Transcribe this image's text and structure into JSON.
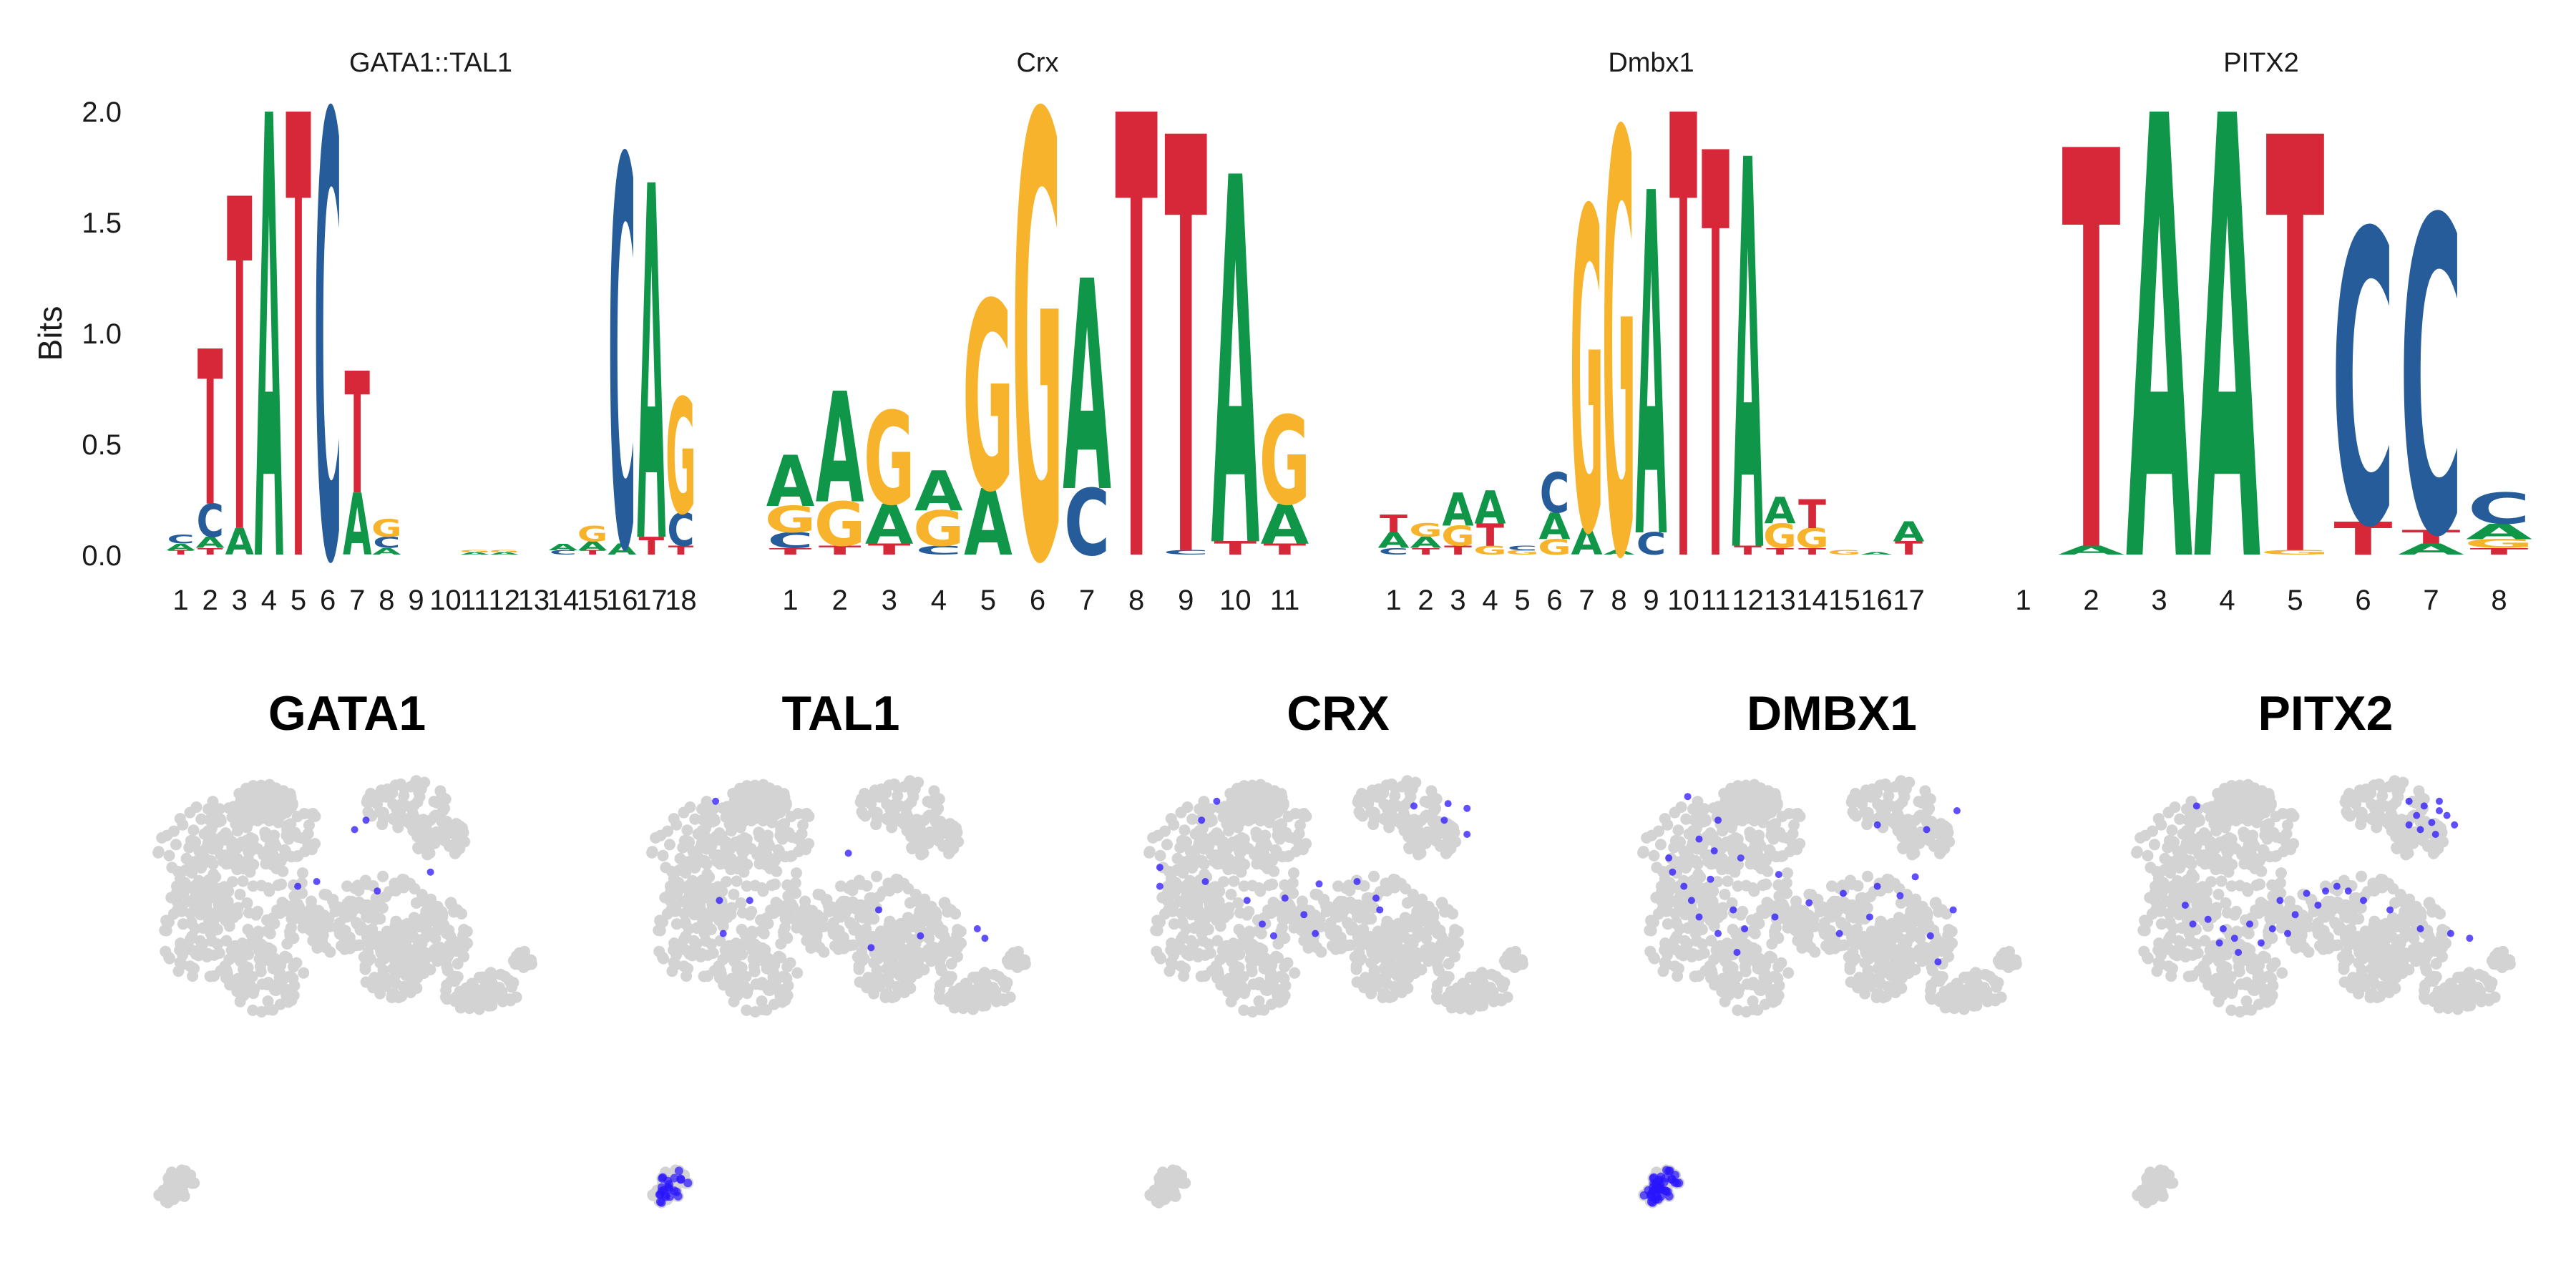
{
  "colors": {
    "A": "#109648",
    "C": "#255C99",
    "G": "#F7B32B",
    "T": "#D62839",
    "umap_bg": "#d3d3d3",
    "umap_hi": "#2a14ff"
  },
  "logo_panel": {
    "ylabel": "Bits",
    "y_ticks": [
      "0.0",
      "0.5",
      "1.0",
      "1.5",
      "2.0"
    ]
  },
  "chart_data": [
    {
      "type": "sequence-logo",
      "title": "GATA1::TAL1",
      "ylabel": "Bits",
      "ylim": [
        0,
        2
      ],
      "positions": [
        {
          "pos": "1",
          "stack": [
            [
              "T",
              0.02
            ],
            [
              "A",
              0.03
            ],
            [
              "C",
              0.04
            ]
          ]
        },
        {
          "pos": "2",
          "stack": [
            [
              "T",
              0.03
            ],
            [
              "A",
              0.05
            ],
            [
              "C",
              0.15
            ],
            [
              "T",
              0.7
            ]
          ]
        },
        {
          "pos": "3",
          "stack": [
            [
              "A",
              0.12
            ],
            [
              "T",
              1.5
            ]
          ]
        },
        {
          "pos": "4",
          "stack": [
            [
              "A",
              2.0
            ]
          ]
        },
        {
          "pos": "5",
          "stack": [
            [
              "T",
              2.0
            ]
          ]
        },
        {
          "pos": "6",
          "stack": [
            [
              "C",
              2.0
            ]
          ]
        },
        {
          "pos": "7",
          "stack": [
            [
              "A",
              0.28
            ],
            [
              "T",
              0.55
            ]
          ]
        },
        {
          "pos": "8",
          "stack": [
            [
              "A",
              0.03
            ],
            [
              "C",
              0.05
            ],
            [
              "G",
              0.08
            ]
          ]
        },
        {
          "pos": "9",
          "stack": []
        },
        {
          "pos": "10",
          "stack": []
        },
        {
          "pos": "11",
          "stack": [
            [
              "A",
              0.01
            ],
            [
              "G",
              0.01
            ]
          ]
        },
        {
          "pos": "12",
          "stack": [
            [
              "A",
              0.01
            ],
            [
              "G",
              0.01
            ]
          ]
        },
        {
          "pos": "13",
          "stack": []
        },
        {
          "pos": "14",
          "stack": [
            [
              "C",
              0.02
            ],
            [
              "A",
              0.03
            ]
          ]
        },
        {
          "pos": "15",
          "stack": [
            [
              "T",
              0.02
            ],
            [
              "A",
              0.04
            ],
            [
              "G",
              0.07
            ]
          ]
        },
        {
          "pos": "16",
          "stack": [
            [
              "A",
              0.05
            ],
            [
              "C",
              1.75
            ]
          ]
        },
        {
          "pos": "17",
          "stack": [
            [
              "T",
              0.08
            ],
            [
              "A",
              1.6
            ]
          ]
        },
        {
          "pos": "18",
          "stack": [
            [
              "T",
              0.04
            ],
            [
              "C",
              0.15
            ],
            [
              "G",
              0.52
            ]
          ]
        }
      ]
    },
    {
      "type": "sequence-logo",
      "title": "Crx",
      "ylim": [
        0,
        2
      ],
      "positions": [
        {
          "pos": "1",
          "stack": [
            [
              "T",
              0.03
            ],
            [
              "C",
              0.07
            ],
            [
              "G",
              0.12
            ],
            [
              "A",
              0.23
            ]
          ]
        },
        {
          "pos": "2",
          "stack": [
            [
              "T",
              0.04
            ],
            [
              "G",
              0.2
            ],
            [
              "A",
              0.5
            ]
          ]
        },
        {
          "pos": "3",
          "stack": [
            [
              "T",
              0.05
            ],
            [
              "A",
              0.18
            ],
            [
              "G",
              0.42
            ]
          ]
        },
        {
          "pos": "4",
          "stack": [
            [
              "C",
              0.04
            ],
            [
              "G",
              0.16
            ],
            [
              "A",
              0.18
            ]
          ]
        },
        {
          "pos": "5",
          "stack": [
            [
              "A",
              0.3
            ],
            [
              "G",
              0.85
            ]
          ]
        },
        {
          "pos": "6",
          "stack": [
            [
              "G",
              2.0
            ]
          ]
        },
        {
          "pos": "7",
          "stack": [
            [
              "C",
              0.3
            ],
            [
              "A",
              0.95
            ]
          ]
        },
        {
          "pos": "8",
          "stack": [
            [
              "T",
              2.0
            ]
          ]
        },
        {
          "pos": "9",
          "stack": [
            [
              "C",
              0.02
            ],
            [
              "T",
              1.88
            ]
          ]
        },
        {
          "pos": "10",
          "stack": [
            [
              "T",
              0.06
            ],
            [
              "A",
              1.66
            ]
          ]
        },
        {
          "pos": "11",
          "stack": [
            [
              "T",
              0.05
            ],
            [
              "A",
              0.18
            ],
            [
              "G",
              0.4
            ]
          ]
        }
      ]
    },
    {
      "type": "sequence-logo",
      "title": "Dmbx1",
      "ylim": [
        0,
        2
      ],
      "positions": [
        {
          "pos": "1",
          "stack": [
            [
              "C",
              0.03
            ],
            [
              "A",
              0.07
            ],
            [
              "T",
              0.08
            ]
          ]
        },
        {
          "pos": "2",
          "stack": [
            [
              "T",
              0.03
            ],
            [
              "A",
              0.05
            ],
            [
              "G",
              0.06
            ]
          ]
        },
        {
          "pos": "3",
          "stack": [
            [
              "T",
              0.04
            ],
            [
              "G",
              0.09
            ],
            [
              "A",
              0.15
            ]
          ]
        },
        {
          "pos": "4",
          "stack": [
            [
              "G",
              0.04
            ],
            [
              "T",
              0.1
            ],
            [
              "A",
              0.15
            ]
          ]
        },
        {
          "pos": "5",
          "stack": [
            [
              "G",
              0.02
            ],
            [
              "C",
              0.02
            ]
          ]
        },
        {
          "pos": "6",
          "stack": [
            [
              "G",
              0.07
            ],
            [
              "A",
              0.12
            ],
            [
              "C",
              0.18
            ]
          ]
        },
        {
          "pos": "7",
          "stack": [
            [
              "A",
              0.12
            ],
            [
              "G",
              1.45
            ]
          ]
        },
        {
          "pos": "8",
          "stack": [
            [
              "A",
              0.02
            ],
            [
              "G",
              1.9
            ]
          ]
        },
        {
          "pos": "9",
          "stack": [
            [
              "C",
              0.1
            ],
            [
              "A",
              1.55
            ]
          ]
        },
        {
          "pos": "10",
          "stack": [
            [
              "T",
              2.0
            ]
          ]
        },
        {
          "pos": "11",
          "stack": [
            [
              "T",
              1.83
            ]
          ]
        },
        {
          "pos": "12",
          "stack": [
            [
              "T",
              0.04
            ],
            [
              "A",
              1.76
            ]
          ]
        },
        {
          "pos": "13",
          "stack": [
            [
              "T",
              0.03
            ],
            [
              "G",
              0.11
            ],
            [
              "A",
              0.12
            ]
          ]
        },
        {
          "pos": "14",
          "stack": [
            [
              "T",
              0.03
            ],
            [
              "G",
              0.09
            ],
            [
              "T",
              0.13
            ]
          ]
        },
        {
          "pos": "15",
          "stack": [
            [
              "G",
              0.02
            ]
          ]
        },
        {
          "pos": "16",
          "stack": [
            [
              "A",
              0.01
            ]
          ]
        },
        {
          "pos": "17",
          "stack": [
            [
              "T",
              0.06
            ],
            [
              "A",
              0.09
            ]
          ]
        }
      ]
    },
    {
      "type": "sequence-logo",
      "title": "PITX2",
      "ylim": [
        0,
        2
      ],
      "positions": [
        {
          "pos": "1",
          "stack": []
        },
        {
          "pos": "2",
          "stack": [
            [
              "A",
              0.04
            ],
            [
              "T",
              1.8
            ]
          ]
        },
        {
          "pos": "3",
          "stack": [
            [
              "A",
              2.0
            ]
          ]
        },
        {
          "pos": "4",
          "stack": [
            [
              "A",
              2.0
            ]
          ]
        },
        {
          "pos": "5",
          "stack": [
            [
              "G",
              0.02
            ],
            [
              "T",
              1.88
            ]
          ]
        },
        {
          "pos": "6",
          "stack": [
            [
              "T",
              0.15
            ],
            [
              "C",
              1.32
            ]
          ]
        },
        {
          "pos": "7",
          "stack": [
            [
              "A",
              0.05
            ],
            [
              "T",
              0.06
            ],
            [
              "C",
              1.42
            ]
          ]
        },
        {
          "pos": "8",
          "stack": [
            [
              "T",
              0.03
            ],
            [
              "G",
              0.04
            ],
            [
              "A",
              0.07
            ],
            [
              "C",
              0.14
            ]
          ]
        }
      ]
    },
    {
      "type": "scatter",
      "title": "GATA1",
      "highlight": [
        [
          0.55,
          0.14
        ],
        [
          0.52,
          0.18
        ],
        [
          0.72,
          0.36
        ],
        [
          0.58,
          0.44
        ],
        [
          0.37,
          0.42
        ],
        [
          0.42,
          0.4
        ]
      ],
      "cluster_highlight": 0
    },
    {
      "type": "scatter",
      "title": "TAL1",
      "highlight": [
        [
          0.17,
          0.06
        ],
        [
          0.52,
          0.28
        ],
        [
          0.26,
          0.48
        ],
        [
          0.18,
          0.48
        ],
        [
          0.19,
          0.62
        ],
        [
          0.58,
          0.68
        ],
        [
          0.86,
          0.6
        ],
        [
          0.88,
          0.64
        ],
        [
          0.6,
          0.52
        ],
        [
          0.71,
          0.63
        ]
      ],
      "cluster_highlight": 24
    },
    {
      "type": "scatter",
      "title": "CRX",
      "highlight": [
        [
          0.18,
          0.06
        ],
        [
          0.14,
          0.14
        ],
        [
          0.7,
          0.08
        ],
        [
          0.79,
          0.07
        ],
        [
          0.84,
          0.09
        ],
        [
          0.78,
          0.14
        ],
        [
          0.84,
          0.2
        ],
        [
          0.03,
          0.34
        ],
        [
          0.03,
          0.42
        ],
        [
          0.15,
          0.4
        ],
        [
          0.26,
          0.48
        ],
        [
          0.36,
          0.47
        ],
        [
          0.45,
          0.41
        ],
        [
          0.55,
          0.4
        ],
        [
          0.6,
          0.47
        ],
        [
          0.41,
          0.54
        ],
        [
          0.3,
          0.58
        ],
        [
          0.33,
          0.63
        ],
        [
          0.44,
          0.62
        ],
        [
          0.61,
          0.52
        ]
      ],
      "cluster_highlight": 0
    },
    {
      "type": "scatter",
      "title": "DMBX1",
      "highlight": [
        [
          0.12,
          0.04
        ],
        [
          0.2,
          0.14
        ],
        [
          0.15,
          0.22
        ],
        [
          0.07,
          0.3
        ],
        [
          0.08,
          0.36
        ],
        [
          0.11,
          0.42
        ],
        [
          0.13,
          0.48
        ],
        [
          0.18,
          0.39
        ],
        [
          0.15,
          0.55
        ],
        [
          0.2,
          0.62
        ],
        [
          0.24,
          0.52
        ],
        [
          0.27,
          0.6
        ],
        [
          0.35,
          0.55
        ],
        [
          0.44,
          0.49
        ],
        [
          0.53,
          0.45
        ],
        [
          0.6,
          0.55
        ],
        [
          0.68,
          0.46
        ],
        [
          0.76,
          0.63
        ],
        [
          0.82,
          0.52
        ],
        [
          0.62,
          0.42
        ],
        [
          0.36,
          0.37
        ],
        [
          0.26,
          0.3
        ],
        [
          0.19,
          0.27
        ],
        [
          0.62,
          0.16
        ],
        [
          0.75,
          0.18
        ],
        [
          0.83,
          0.1
        ],
        [
          0.72,
          0.38
        ],
        [
          0.52,
          0.62
        ],
        [
          0.25,
          0.7
        ],
        [
          0.78,
          0.74
        ]
      ],
      "cluster_highlight": 45
    },
    {
      "type": "scatter",
      "title": "PITX2",
      "highlight": [
        [
          0.16,
          0.08
        ],
        [
          0.72,
          0.06
        ],
        [
          0.76,
          0.08
        ],
        [
          0.8,
          0.06
        ],
        [
          0.74,
          0.12
        ],
        [
          0.78,
          0.15
        ],
        [
          0.82,
          0.12
        ],
        [
          0.75,
          0.18
        ],
        [
          0.79,
          0.2
        ],
        [
          0.72,
          0.16
        ],
        [
          0.84,
          0.16
        ],
        [
          0.8,
          0.1
        ],
        [
          0.15,
          0.58
        ],
        [
          0.19,
          0.56
        ],
        [
          0.23,
          0.6
        ],
        [
          0.26,
          0.64
        ],
        [
          0.3,
          0.58
        ],
        [
          0.33,
          0.66
        ],
        [
          0.27,
          0.7
        ],
        [
          0.36,
          0.6
        ],
        [
          0.4,
          0.62
        ],
        [
          0.42,
          0.54
        ],
        [
          0.38,
          0.48
        ],
        [
          0.45,
          0.45
        ],
        [
          0.5,
          0.44
        ],
        [
          0.53,
          0.42
        ],
        [
          0.48,
          0.5
        ],
        [
          0.56,
          0.44
        ],
        [
          0.6,
          0.48
        ],
        [
          0.67,
          0.52
        ],
        [
          0.75,
          0.6
        ],
        [
          0.83,
          0.62
        ],
        [
          0.88,
          0.64
        ],
        [
          0.13,
          0.5
        ],
        [
          0.22,
          0.66
        ]
      ],
      "cluster_highlight": 0
    }
  ]
}
